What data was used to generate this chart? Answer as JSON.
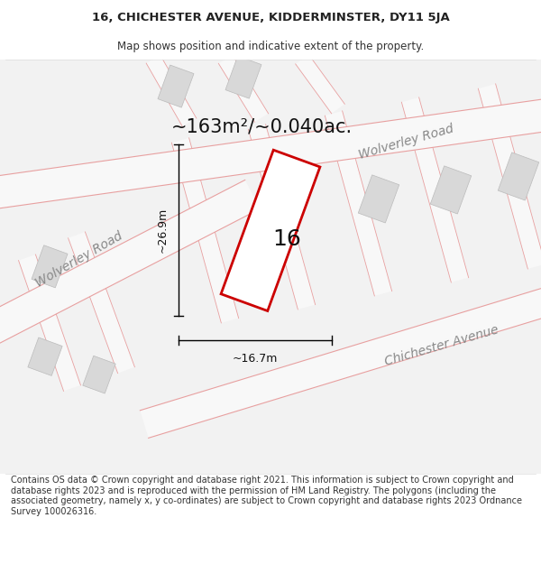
{
  "title_line1": "16, CHICHESTER AVENUE, KIDDERMINSTER, DY11 5JA",
  "title_line2": "Map shows position and indicative extent of the property.",
  "area_label": "~163m²/~0.040ac.",
  "plot_number": "16",
  "dim_height": "~26.9m",
  "dim_width": "~16.7m",
  "road_label_upper": "Wolverley Road",
  "road_label_left": "Wolverley Road",
  "road_label_right": "Chichester Avenue",
  "footer_text": "Contains OS data © Crown copyright and database right 2021. This information is subject to Crown copyright and database rights 2023 and is reproduced with the permission of HM Land Registry. The polygons (including the associated geometry, namely x, y co-ordinates) are subject to Crown copyright and database rights 2023 Ordnance Survey 100026316.",
  "road_color": "#e8a0a0",
  "road_fill": "#f5f5f5",
  "map_bg": "#eeeeee",
  "building_fill": "#d8d8d8",
  "building_edge": "#bbbbbb",
  "plot_stroke": "#cc0000",
  "plot_fill": "#ffffff",
  "dim_color": "#000000",
  "road_label_color": "#888888",
  "title_fs": 9.5,
  "subtitle_fs": 8.5,
  "area_fs": 15,
  "plot_num_fs": 18,
  "road_label_fs": 10,
  "dim_fs": 9,
  "footer_fs": 7
}
